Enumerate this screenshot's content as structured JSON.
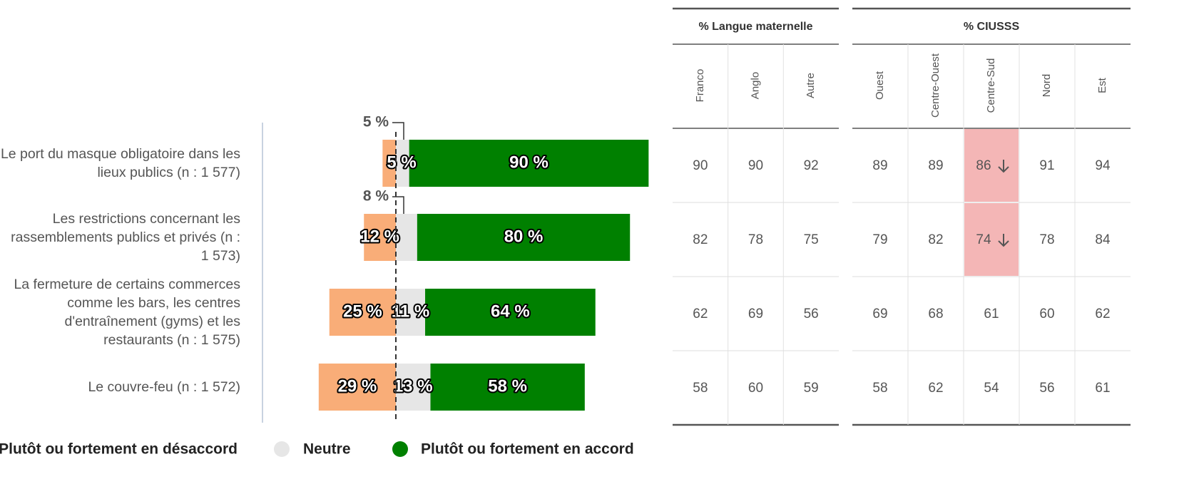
{
  "chart_data": {
    "type": "diverging_bar",
    "categories": [
      "Le port du masque obligatoire dans les lieux publics (n : 1 577)",
      "Les restrictions concernant les rassemblements publics et privés (n : 1 573)",
      "La fermeture de certains commerces comme les bars, les centres d'entraînement (gyms) et les restaurants (n : 1 575)",
      "Le couvre-feu (n : 1 572)"
    ],
    "series": [
      {
        "name": "Plutôt ou fortement en désaccord",
        "color": "#f9ad78",
        "values": [
          5,
          12,
          25,
          29
        ],
        "value_labels": [
          "5 %",
          "12 %",
          "25 %",
          "29 %"
        ]
      },
      {
        "name": "Neutre",
        "color": "#e6e6e6",
        "values": [
          5,
          8,
          11,
          13
        ],
        "value_labels": [
          "5 %",
          "8 %",
          "11 %",
          "13 %"
        ]
      },
      {
        "name": "Plutôt ou fortement en accord",
        "color": "#008000",
        "values": [
          90,
          80,
          64,
          58
        ],
        "value_labels": [
          "90 %",
          "80 %",
          "64 %",
          "58 %"
        ]
      }
    ]
  },
  "table": {
    "groups": [
      {
        "title": "% Langue maternelle",
        "columns": [
          "Franco",
          "Anglo",
          "Autre"
        ]
      },
      {
        "title": "% CIUSSS",
        "columns": [
          "Ouest",
          "Centre-Ouest",
          "Centre-Sud",
          "Nord",
          "Est"
        ]
      }
    ],
    "rows": [
      [
        90,
        90,
        92,
        89,
        89,
        86,
        91,
        94
      ],
      [
        82,
        78,
        75,
        79,
        82,
        74,
        78,
        84
      ],
      [
        62,
        69,
        56,
        69,
        68,
        61,
        60,
        62
      ],
      [
        58,
        60,
        59,
        58,
        62,
        54,
        56,
        61
      ]
    ],
    "highlight_color": "#f4b6b6",
    "significantly_lower": [
      [
        0,
        5
      ],
      [
        1,
        5
      ]
    ]
  }
}
